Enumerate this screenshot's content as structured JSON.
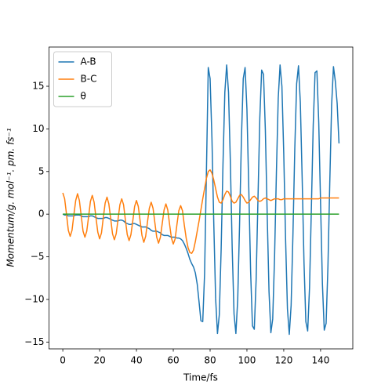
{
  "chart_data": {
    "type": "line",
    "xlabel": "Time/fs",
    "ylabel": "Momentum/g. mol⁻¹. pm. fs⁻¹",
    "legend": "upper left",
    "xlim": [
      -7.5,
      157.5
    ],
    "ylim": [
      -15.8,
      19.6
    ],
    "xticks": [
      0,
      20,
      40,
      60,
      80,
      100,
      120,
      140
    ],
    "yticks": [
      {
        "value": -15,
        "label": "−15"
      },
      {
        "value": -10,
        "label": "−10"
      },
      {
        "value": -5,
        "label": "−5"
      },
      0,
      5,
      10,
      15
    ],
    "x": [
      0,
      1,
      2,
      3,
      4,
      5,
      6,
      7,
      8,
      9,
      10,
      11,
      12,
      13,
      14,
      15,
      16,
      17,
      18,
      19,
      20,
      21,
      22,
      23,
      24,
      25,
      26,
      27,
      28,
      29,
      30,
      31,
      32,
      33,
      34,
      35,
      36,
      37,
      38,
      39,
      40,
      41,
      42,
      43,
      44,
      45,
      46,
      47,
      48,
      49,
      50,
      51,
      52,
      53,
      54,
      55,
      56,
      57,
      58,
      59,
      60,
      61,
      62,
      63,
      64,
      65,
      66,
      67,
      68,
      69,
      70,
      71,
      72,
      73,
      74,
      75,
      76,
      77,
      78,
      79,
      80,
      81,
      82,
      83,
      84,
      85,
      86,
      87,
      88,
      89,
      90,
      91,
      92,
      93,
      94,
      95,
      96,
      97,
      98,
      99,
      100,
      101,
      102,
      103,
      104,
      105,
      106,
      107,
      108,
      109,
      110,
      111,
      112,
      113,
      114,
      115,
      116,
      117,
      118,
      119,
      120,
      121,
      122,
      123,
      124,
      125,
      126,
      127,
      128,
      129,
      130,
      131,
      132,
      133,
      134,
      135,
      136,
      137,
      138,
      139,
      140,
      141,
      142,
      143,
      144,
      145,
      146,
      147,
      148,
      149,
      150
    ],
    "series": [
      {
        "name": "A-B",
        "color": "#1f77b4",
        "values": [
          0,
          -0.1,
          -0.1,
          -0.2,
          -0.2,
          -0.2,
          -0.2,
          -0.1,
          -0.1,
          -0.1,
          -0.2,
          -0.3,
          -0.3,
          -0.3,
          -0.3,
          -0.2,
          -0.2,
          -0.3,
          -0.4,
          -0.5,
          -0.5,
          -0.5,
          -0.5,
          -0.4,
          -0.4,
          -0.5,
          -0.6,
          -0.7,
          -0.8,
          -0.8,
          -0.8,
          -0.7,
          -0.7,
          -0.8,
          -1.0,
          -1.1,
          -1.2,
          -1.2,
          -1.1,
          -1.1,
          -1.2,
          -1.3,
          -1.4,
          -1.5,
          -1.5,
          -1.5,
          -1.6,
          -1.7,
          -1.9,
          -2.0,
          -2.0,
          -2.0,
          -2.1,
          -2.2,
          -2.4,
          -2.5,
          -2.5,
          -2.5,
          -2.6,
          -2.7,
          -2.7,
          -2.7,
          -2.8,
          -2.8,
          -2.9,
          -3.1,
          -3.5,
          -4.0,
          -4.6,
          -5.3,
          -5.8,
          -6.2,
          -6.9,
          -8.2,
          -10.3,
          -12.5,
          -12.6,
          -7.0,
          5.0,
          17.2,
          15.9,
          8.9,
          -1.1,
          -9.9,
          -14.0,
          -11.8,
          -4.1,
          5.9,
          14.3,
          17.5,
          14.3,
          6.1,
          -4.0,
          -11.7,
          -14.0,
          -10.0,
          -1.2,
          8.8,
          15.9,
          17.2,
          12.3,
          3.1,
          -6.7,
          -13.1,
          -13.5,
          -7.7,
          1.8,
          11.3,
          16.9,
          16.4,
          9.9,
          0.0,
          -9.1,
          -13.9,
          -12.3,
          -5.1,
          4.8,
          13.6,
          17.5,
          15.0,
          7.1,
          -3.0,
          -11.1,
          -14.1,
          -10.7,
          -2.3,
          7.7,
          15.3,
          17.4,
          13.1,
          4.2,
          -5.7,
          -12.6,
          -13.7,
          -8.6,
          0.7,
          10.4,
          16.6,
          16.8,
          10.8,
          1.2,
          -8.2,
          -13.6,
          -12.8,
          -6.1,
          3.7,
          12.8,
          17.3,
          15.6,
          13.0,
          8.3
        ]
      },
      {
        "name": "B-C",
        "color": "#ff7f0e",
        "values": [
          2.5,
          1.8,
          0.0,
          -1.9,
          -2.6,
          -1.9,
          -0.1,
          1.6,
          2.4,
          1.6,
          -0.2,
          -2.0,
          -2.7,
          -2.0,
          -0.3,
          1.5,
          2.2,
          1.4,
          -0.4,
          -2.1,
          -2.9,
          -2.2,
          -0.4,
          1.3,
          2.0,
          1.2,
          -0.5,
          -2.3,
          -3.0,
          -2.3,
          -0.6,
          1.1,
          1.8,
          1.1,
          -0.7,
          -2.4,
          -3.1,
          -2.4,
          -0.8,
          0.9,
          1.6,
          0.9,
          -0.8,
          -2.5,
          -3.3,
          -2.6,
          -0.9,
          0.7,
          1.4,
          0.7,
          -1.0,
          -2.7,
          -3.4,
          -2.7,
          -1.1,
          0.5,
          1.2,
          0.5,
          -1.2,
          -2.8,
          -3.5,
          -2.9,
          -1.2,
          0.4,
          1.0,
          0.4,
          -1.3,
          -2.8,
          -3.9,
          -4.5,
          -4.6,
          -4.2,
          -3.2,
          -2.0,
          -0.8,
          0.5,
          1.8,
          3.0,
          4.2,
          5.0,
          5.2,
          4.8,
          4.0,
          3.0,
          2.0,
          1.4,
          1.3,
          1.7,
          2.3,
          2.7,
          2.6,
          2.1,
          1.5,
          1.3,
          1.4,
          1.8,
          2.2,
          2.3,
          2.0,
          1.6,
          1.3,
          1.4,
          1.7,
          2.0,
          2.1,
          1.9,
          1.6,
          1.5,
          1.6,
          1.8,
          1.9,
          1.8,
          1.7,
          1.6,
          1.7,
          1.8,
          1.8,
          1.8,
          1.7,
          1.7,
          1.8,
          1.8,
          1.8,
          1.8,
          1.8,
          1.8,
          1.8,
          1.8,
          1.8,
          1.8,
          1.8,
          1.8,
          1.8,
          1.8,
          1.8,
          1.8,
          1.8,
          1.8,
          1.8,
          1.8,
          1.9,
          1.9,
          1.9,
          1.9,
          1.9,
          1.9,
          1.9,
          1.9,
          1.9,
          1.9,
          1.9
        ]
      },
      {
        "name": "θ",
        "color": "#2ca02c",
        "values": [
          0,
          0,
          0,
          0,
          0,
          0,
          0,
          0,
          0,
          0,
          0,
          0,
          0,
          0,
          0,
          0,
          0,
          0,
          0,
          0,
          0,
          0,
          0,
          0,
          0,
          0,
          0,
          0,
          0,
          0,
          0,
          0,
          0,
          0,
          0,
          0,
          0,
          0,
          0,
          0,
          0,
          0,
          0,
          0,
          0,
          0,
          0,
          0,
          0,
          0,
          0,
          0,
          0,
          0,
          0,
          0,
          0,
          0,
          0,
          0,
          0,
          0,
          0,
          0,
          0,
          0,
          0,
          0,
          0,
          0,
          0,
          0,
          0,
          0,
          0,
          0,
          0,
          0,
          0,
          0,
          0,
          0,
          0,
          0,
          0,
          0,
          0,
          0,
          0,
          0,
          0,
          0,
          0,
          0,
          0,
          0,
          0,
          0,
          0,
          0,
          0,
          0,
          0,
          0,
          0,
          0,
          0,
          0,
          0,
          0,
          0,
          0,
          0,
          0,
          0,
          0,
          0,
          0,
          0,
          0,
          0,
          0,
          0,
          0,
          0,
          0,
          0,
          0,
          0,
          0,
          0,
          0,
          0,
          0,
          0,
          0,
          0,
          0,
          0,
          0,
          0,
          0,
          0,
          0,
          0,
          0,
          0,
          0,
          0,
          0,
          0
        ]
      }
    ]
  }
}
